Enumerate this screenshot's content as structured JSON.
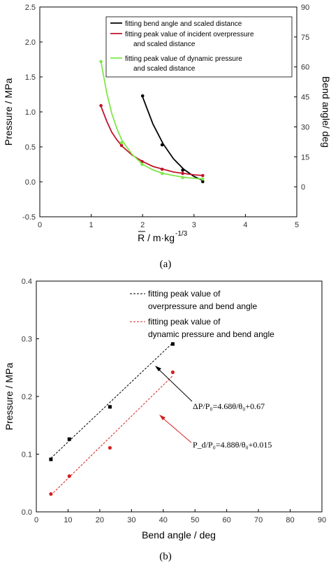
{
  "chart_data": [
    {
      "type": "line",
      "caption": "(a)",
      "xlabel": "R / m·kg",
      "xlabel_sup": "-1/3",
      "ylabel": "Pressure / MPa",
      "ylabel_right": "Bend angle/ deg",
      "xlim": [
        0,
        5
      ],
      "ylim": [
        -0.5,
        2.5
      ],
      "ylim_right": [
        -15,
        90
      ],
      "xticks": [
        "0",
        "1",
        "2",
        "3",
        "4",
        "5"
      ],
      "yticks": [
        "-0.5",
        "0.0",
        "0.5",
        "1.0",
        "1.5",
        "2.0",
        "2.5"
      ],
      "yticks_right": [
        "0",
        "15",
        "30",
        "45",
        "60",
        "75",
        "90"
      ],
      "legend_position": "top-right",
      "series": [
        {
          "name": "fitting bend angle and scaled distance",
          "color": "#000000",
          "axis": "right",
          "points": [
            [
              2.0,
              45.5
            ],
            [
              2.38,
              21.0
            ],
            [
              2.78,
              8.3
            ],
            [
              3.17,
              2.6
            ]
          ],
          "curve": [
            [
              2.0,
              45.0
            ],
            [
              2.2,
              31.5
            ],
            [
              2.4,
              21.5
            ],
            [
              2.6,
              14.0
            ],
            [
              2.8,
              8.8
            ],
            [
              3.0,
              5.2
            ],
            [
              3.17,
              3.2
            ]
          ]
        },
        {
          "name": "fitting peak value of incident overpressure and scaled distance",
          "name_line2": "and scaled distance",
          "name_line1": "fitting peak value of incident overpressure",
          "color": "#c0152a",
          "axis": "left",
          "points": [
            [
              1.19,
              1.09
            ],
            [
              1.59,
              0.52
            ],
            [
              1.99,
              0.29
            ],
            [
              2.38,
              0.18
            ],
            [
              2.78,
              0.12
            ],
            [
              3.17,
              0.09
            ]
          ],
          "curve": [
            [
              1.19,
              1.08
            ],
            [
              1.3,
              0.87
            ],
            [
              1.4,
              0.71
            ],
            [
              1.5,
              0.6
            ],
            [
              1.6,
              0.51
            ],
            [
              1.8,
              0.38
            ],
            [
              2.0,
              0.29
            ],
            [
              2.2,
              0.22
            ],
            [
              2.4,
              0.18
            ],
            [
              2.6,
              0.14
            ],
            [
              2.8,
              0.12
            ],
            [
              3.0,
              0.1
            ],
            [
              3.17,
              0.09
            ]
          ]
        },
        {
          "name": "fitting peak value of dynamic pressure and scaled distance",
          "name_line1": "fitting peak value of dynamic pressure",
          "name_line2": "and scaled distance",
          "color": "#7ee848",
          "axis": "left",
          "points": [
            [
              1.19,
              1.72
            ],
            [
              1.59,
              0.56
            ],
            [
              1.99,
              0.25
            ],
            [
              2.38,
              0.12
            ],
            [
              2.78,
              0.06
            ],
            [
              3.17,
              0.04
            ]
          ],
          "curve": [
            [
              1.19,
              1.72
            ],
            [
              1.3,
              1.28
            ],
            [
              1.4,
              0.98
            ],
            [
              1.5,
              0.76
            ],
            [
              1.6,
              0.59
            ],
            [
              1.8,
              0.39
            ],
            [
              2.0,
              0.25
            ],
            [
              2.2,
              0.17
            ],
            [
              2.4,
              0.12
            ],
            [
              2.6,
              0.09
            ],
            [
              2.8,
              0.065
            ],
            [
              3.0,
              0.05
            ],
            [
              3.17,
              0.04
            ]
          ]
        }
      ]
    },
    {
      "type": "scatter",
      "caption": "(b)",
      "xlabel": "Bend angle / deg",
      "ylabel": "Pressure / MPa",
      "xlim": [
        0,
        90
      ],
      "ylim": [
        0.0,
        0.4
      ],
      "xticks": [
        "0",
        "10",
        "20",
        "30",
        "40",
        "50",
        "60",
        "70",
        "80",
        "90"
      ],
      "yticks": [
        "0.0",
        "0.1",
        "0.2",
        "0.3",
        "0.4"
      ],
      "legend_position": "top-right",
      "series": [
        {
          "name_line1": "fitting peak value of",
          "name_line2": "overpressure and bend angle",
          "color": "#000000",
          "points": [
            [
              4.6,
              0.091
            ],
            [
              10.4,
              0.126
            ],
            [
              23.2,
              0.182
            ],
            [
              43.0,
              0.291
            ]
          ],
          "fit": [
            [
              4.6,
              0.093
            ],
            [
              43.0,
              0.293
            ]
          ]
        },
        {
          "name_line1": "fitting peak value of",
          "name_line2": "dynamic pressure and bend angle",
          "color": "#d42020",
          "points": [
            [
              4.6,
              0.031
            ],
            [
              10.4,
              0.062
            ],
            [
              23.2,
              0.111
            ],
            [
              43.0,
              0.242
            ]
          ],
          "fit": [
            [
              4.6,
              0.029
            ],
            [
              43.0,
              0.236
            ]
          ]
        }
      ],
      "annotations": [
        {
          "text": "ΔP/P₀=4.68θ/θ₀+0.67",
          "color": "#000000"
        },
        {
          "text": "P_d/P₀=4.88θ/θ₀+0.015",
          "color": "#d42020"
        }
      ]
    }
  ]
}
